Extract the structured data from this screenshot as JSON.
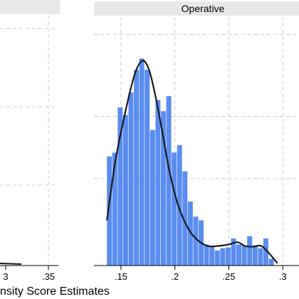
{
  "chart_data": {
    "type": "bar",
    "panels": [
      {
        "name": "",
        "xlim": [
          null,
          0.35
        ],
        "x_ticks_visible": [
          "3",
          ".35"
        ],
        "note": "left panel cropped; only right portion visible"
      },
      {
        "name": "Operative",
        "xlim": [
          0.125,
          0.315
        ],
        "x_ticks": [
          0.15,
          0.2,
          0.25,
          0.3
        ],
        "x_tick_labels": [
          ".15",
          ".2",
          ".25",
          ".3"
        ],
        "bin_width": 0.005,
        "bins_start": [
          0.137,
          0.142,
          0.147,
          0.152,
          0.157,
          0.162,
          0.167,
          0.172,
          0.177,
          0.182,
          0.187,
          0.192,
          0.197,
          0.202,
          0.207,
          0.212,
          0.217,
          0.222,
          0.227,
          0.232,
          0.237,
          0.242,
          0.247,
          0.252,
          0.257,
          0.262,
          0.267,
          0.272,
          0.277,
          0.282,
          0.287
        ],
        "density": [
          14.5,
          15.0,
          21.0,
          20.0,
          23.0,
          26.0,
          27.5,
          26.0,
          18.0,
          22.0,
          20.5,
          22.5,
          15.0,
          16.0,
          12.5,
          8.5,
          6.5,
          6.0,
          2.8,
          2.5,
          2.0,
          2.3,
          2.4,
          3.6,
          2.8,
          2.6,
          3.9,
          2.7,
          2.3,
          3.6,
          0.9
        ],
        "kde_x": [
          0.137,
          0.145,
          0.155,
          0.163,
          0.17,
          0.176,
          0.182,
          0.188,
          0.195,
          0.203,
          0.212,
          0.22,
          0.23,
          0.24,
          0.25,
          0.258,
          0.265,
          0.272,
          0.28,
          0.288,
          0.295
        ],
        "kde_y": [
          6.0,
          14.0,
          21.0,
          25.5,
          27.2,
          26.0,
          22.5,
          18.0,
          12.5,
          8.0,
          5.0,
          3.5,
          2.6,
          2.6,
          2.8,
          3.1,
          2.6,
          2.5,
          2.6,
          1.5,
          0.3
        ],
        "ylim": [
          0,
          33
        ]
      }
    ],
    "xlabel": "nsity Score Estimates",
    "grid": true,
    "colors": {
      "bars": "#5B8DEF",
      "curve": "#1a1a1a",
      "grid": "#cccccc",
      "strip": "#e8e8e8"
    }
  }
}
